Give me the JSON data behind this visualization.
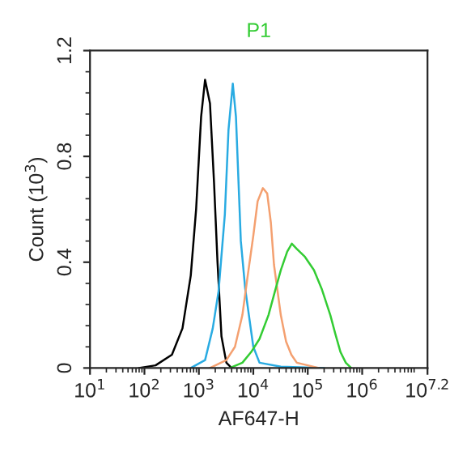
{
  "chart_data": {
    "type": "line",
    "title": "P1",
    "xlabel": "AF647-H",
    "ylabel": "Count (10$^{3}$)",
    "log": "x",
    "grid": false,
    "legend": false,
    "marker": "none",
    "line_style": "solid",
    "xlim": [
      10,
      15848932
    ],
    "ylim": [
      0,
      1.2
    ],
    "xticks": [
      {
        "value": 10,
        "label": "10$^{1}$"
      },
      {
        "value": 100,
        "label": "10$^{2}$"
      },
      {
        "value": 1000,
        "label": "10$^{3}$"
      },
      {
        "value": 10000,
        "label": "10$^{4}$"
      },
      {
        "value": 100000,
        "label": "10$^{5}$"
      },
      {
        "value": 1000000,
        "label": "10$^{6}$"
      },
      {
        "value": 15848932,
        "label": "10$^{7.2}$"
      }
    ],
    "yticks": [
      0,
      0.4,
      0.8,
      1.2
    ],
    "series": [
      {
        "color": "#000000",
        "x": [
          79,
          160,
          320,
          500,
          710,
          890,
          1100,
          1300,
          1600,
          1900,
          2200,
          2600,
          3200,
          4000
        ],
        "values": [
          0,
          0.01,
          0.05,
          0.15,
          0.35,
          0.6,
          0.95,
          1.09,
          1.0,
          0.7,
          0.4,
          0.12,
          0.02,
          0
        ]
      },
      {
        "color": "#29abe2",
        "x": [
          710,
          1300,
          1800,
          2300,
          3000,
          3500,
          4200,
          4800,
          5900,
          7100,
          8300,
          10000,
          13000,
          32000,
          200000
        ],
        "values": [
          0,
          0.03,
          0.15,
          0.29,
          0.58,
          0.9,
          1.075,
          0.95,
          0.48,
          0.3,
          0.2,
          0.08,
          0.02,
          0.005,
          0
        ]
      },
      {
        "color": "#f4a070",
        "x": [
          1600,
          3200,
          4600,
          6300,
          7900,
          10000,
          12000,
          15000,
          18000,
          21000,
          24000,
          32000,
          40000,
          50000,
          63000,
          100000,
          160000
        ],
        "values": [
          0,
          0.03,
          0.08,
          0.2,
          0.35,
          0.5,
          0.63,
          0.68,
          0.66,
          0.55,
          0.39,
          0.2,
          0.1,
          0.05,
          0.02,
          0.01,
          0
        ]
      },
      {
        "color": "#33cc33",
        "x": [
          3700,
          6300,
          9100,
          13000,
          19000,
          25000,
          32000,
          42000,
          51000,
          63000,
          89000,
          130000,
          180000,
          260000,
          320000,
          400000,
          500000,
          630000
        ],
        "values": [
          0,
          0.02,
          0.06,
          0.11,
          0.2,
          0.29,
          0.37,
          0.44,
          0.47,
          0.45,
          0.42,
          0.37,
          0.3,
          0.2,
          0.13,
          0.06,
          0.02,
          0
        ]
      }
    ]
  }
}
